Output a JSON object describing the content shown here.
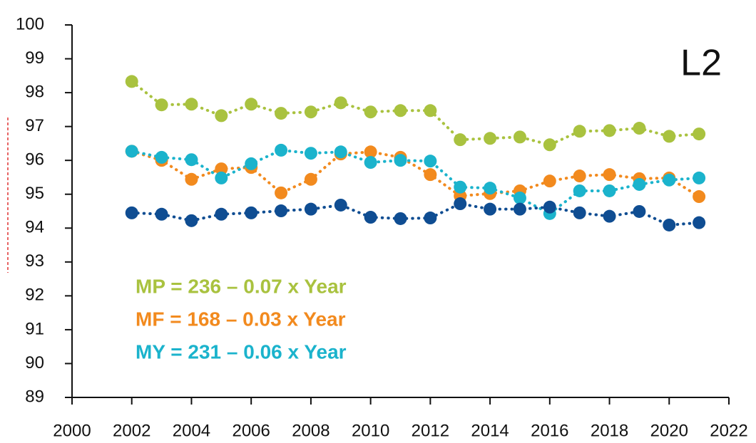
{
  "chart_data": {
    "type": "line",
    "x": [
      2002,
      2003,
      2004,
      2005,
      2006,
      2007,
      2008,
      2009,
      2010,
      2011,
      2012,
      2013,
      2014,
      2015,
      2016,
      2017,
      2018,
      2019,
      2020,
      2021
    ],
    "series": [
      {
        "color": "#a9c23f",
        "values": [
          98.33,
          97.64,
          97.66,
          97.32,
          97.66,
          97.39,
          97.43,
          97.7,
          97.43,
          97.47,
          97.47,
          96.61,
          96.65,
          96.69,
          96.46,
          96.86,
          96.88,
          96.95,
          96.71,
          96.78
        ]
      },
      {
        "color": "#f28a1e",
        "values": [
          96.27,
          96.0,
          95.44,
          95.75,
          95.79,
          95.04,
          95.44,
          96.19,
          96.25,
          96.09,
          95.58,
          94.95,
          95.02,
          95.1,
          95.39,
          95.54,
          95.58,
          95.46,
          95.48,
          94.93
        ]
      },
      {
        "color": "#1bb3cc",
        "values": [
          96.27,
          96.09,
          96.02,
          95.48,
          95.9,
          96.3,
          96.21,
          96.25,
          95.94,
          96.0,
          95.98,
          95.21,
          95.18,
          94.89,
          94.43,
          95.1,
          95.1,
          95.29,
          95.42,
          95.48
        ]
      },
      {
        "color": "#0f4d92",
        "values": [
          94.45,
          94.41,
          94.22,
          94.41,
          94.45,
          94.51,
          94.56,
          94.68,
          94.32,
          94.28,
          94.3,
          94.72,
          94.56,
          94.56,
          94.62,
          94.45,
          94.35,
          94.49,
          94.09,
          94.16
        ]
      }
    ],
    "xlim": [
      2000,
      2022
    ],
    "xticks": [
      2000,
      2002,
      2004,
      2006,
      2008,
      2010,
      2012,
      2014,
      2016,
      2018,
      2020,
      2022
    ],
    "ylim": [
      89,
      100
    ],
    "yticks": [
      89,
      90,
      91,
      92,
      93,
      94,
      95,
      96,
      97,
      98,
      99,
      100
    ],
    "panel_label": "L2",
    "annotations": [
      {
        "text": "MP = 236 – 0.07 x Year",
        "color": "#a9c23f"
      },
      {
        "text": "MF = 168 – 0.03 x Year",
        "color": "#f28a1e"
      },
      {
        "text": "MY = 231 – 0.06 x Year",
        "color": "#1bb3cc"
      }
    ]
  }
}
